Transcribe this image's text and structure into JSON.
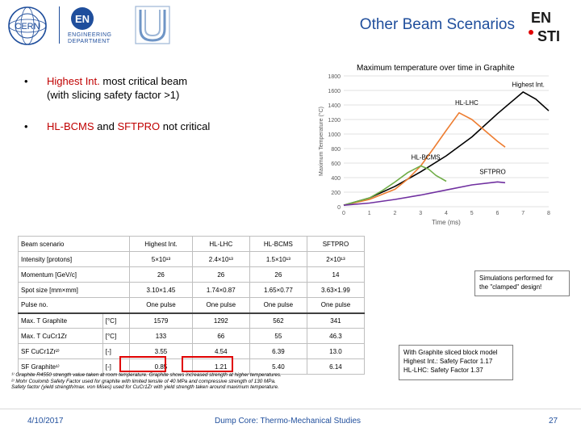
{
  "header": {
    "title": "Other Beam Scenarios",
    "logo_cern_text": "CERN",
    "logo_en_text": "EN",
    "logo_en_sub": [
      "ENGINEERING",
      "DEPARTMENT"
    ],
    "logo_ensti_top": "EN",
    "logo_ensti_bottom": "STI"
  },
  "bullets": [
    {
      "highlight": "Highest Int.",
      "rest": " most critical beam",
      "line2": "(with slicing safety factor >1)"
    },
    {
      "highlight": "HL-BCMS",
      "mid": " and ",
      "highlight2": "SFTPRO",
      "rest": " not critical"
    }
  ],
  "chart_data": {
    "type": "line",
    "title": "Maximum temperature over time in Graphite",
    "xlabel": "Time (ms)",
    "ylabel": "Maximum Temperature (°C)",
    "xlim": [
      0,
      8
    ],
    "ylim": [
      0,
      1800
    ],
    "xticks": [
      "0",
      "1",
      "2",
      "3",
      "4",
      "5",
      "6",
      "7",
      "8"
    ],
    "yticks": [
      "0",
      "200",
      "400",
      "600",
      "800",
      "1000",
      "1200",
      "1400",
      "1600",
      "1800"
    ],
    "grid": true,
    "series": [
      {
        "name": "Highest Int.",
        "color": "#000000",
        "x": [
          0,
          1,
          2,
          3,
          4,
          5,
          6,
          6.5,
          7,
          7.5,
          8
        ],
        "y": [
          20,
          120,
          280,
          480,
          700,
          960,
          1280,
          1430,
          1579,
          1480,
          1320
        ]
      },
      {
        "name": "HL-LHC",
        "color": "#ed7d31",
        "x": [
          0,
          1,
          2,
          2.5,
          3,
          3.5,
          4,
          4.5,
          5,
          5.5,
          6,
          6.3
        ],
        "y": [
          20,
          100,
          240,
          380,
          560,
          800,
          1050,
          1292,
          1200,
          1050,
          900,
          820
        ]
      },
      {
        "name": "HL-BCMS",
        "color": "#70ad47",
        "x": [
          0,
          1,
          1.5,
          2,
          2.5,
          3,
          3.3,
          3.6,
          4
        ],
        "y": [
          20,
          120,
          220,
          340,
          470,
          562,
          520,
          430,
          350
        ]
      },
      {
        "name": "SFTPRO",
        "color": "#7030a0",
        "x": [
          0,
          1,
          2,
          3,
          4,
          5,
          6,
          6.3
        ],
        "y": [
          20,
          50,
          100,
          160,
          230,
          300,
          341,
          330
        ]
      }
    ]
  },
  "table": {
    "header": [
      "Beam scenario",
      "Highest Int.",
      "HL-LHC",
      "HL-BCMS",
      "SFTPRO"
    ],
    "rows": [
      {
        "label": "Intensity [protons]",
        "unit": "",
        "values": [
          "5×10¹³",
          "2.4×10¹³",
          "1.5×10¹³",
          "2×10¹³"
        ]
      },
      {
        "label": "Momentum [GeV/c]",
        "unit": "",
        "values": [
          "26",
          "26",
          "26",
          "14"
        ]
      },
      {
        "label": "Spot size [mm×mm]",
        "unit": "",
        "values": [
          "3.10×1.45",
          "1.74×0.87",
          "1.65×0.77",
          "3.63×1.99"
        ]
      },
      {
        "label": "Pulse no.",
        "unit": "",
        "values": [
          "One pulse",
          "One pulse",
          "One pulse",
          "One pulse"
        ]
      },
      {
        "label": "Max. T Graphite",
        "unit": "[°C]",
        "values": [
          "1579",
          "1292",
          "562",
          "341"
        ]
      },
      {
        "label": "Max. T CuCr1Zr",
        "unit": "[°C]",
        "values": [
          "133",
          "66",
          "55",
          "46.3"
        ]
      },
      {
        "label": "SF CuCr1Zr²⁾",
        "unit": "[-]",
        "values": [
          "3.55",
          "4.54",
          "6.39",
          "13.0"
        ]
      },
      {
        "label": "SF Graphite¹⁾",
        "unit": "[-]",
        "values": [
          "0.85",
          "1.21",
          "5.40",
          "6.14"
        ]
      }
    ]
  },
  "footnotes": [
    "¹⁾ Graphite R4550 strength value taken at room temperature. Graphite shows increased strength at higher temperatures.",
    "²⁾ Mohr Coulomb Safety Factor used for graphite with limited tensile of 40 MPa and compressive strength of 130 MPa.",
    "Safety factor (yield strength/max. von Mises) used for CuCr1Zr with yield strength taken around maximum temperature."
  ],
  "callouts": {
    "simulations": [
      "Simulations performed for",
      "the \"clamped\" design!"
    ],
    "sliced": [
      "With Graphite sliced block model",
      "Highest Int.: Safety Factor 1.17",
      "HL-LHC: Safety Factor 1.37"
    ]
  },
  "footer": {
    "date": "4/10/2017",
    "center": "Dump Core: Thermo-Mechanical Studies",
    "page": "27"
  },
  "colors": {
    "brand_blue": "#1f4e9c",
    "highlight_red": "#c00000"
  }
}
